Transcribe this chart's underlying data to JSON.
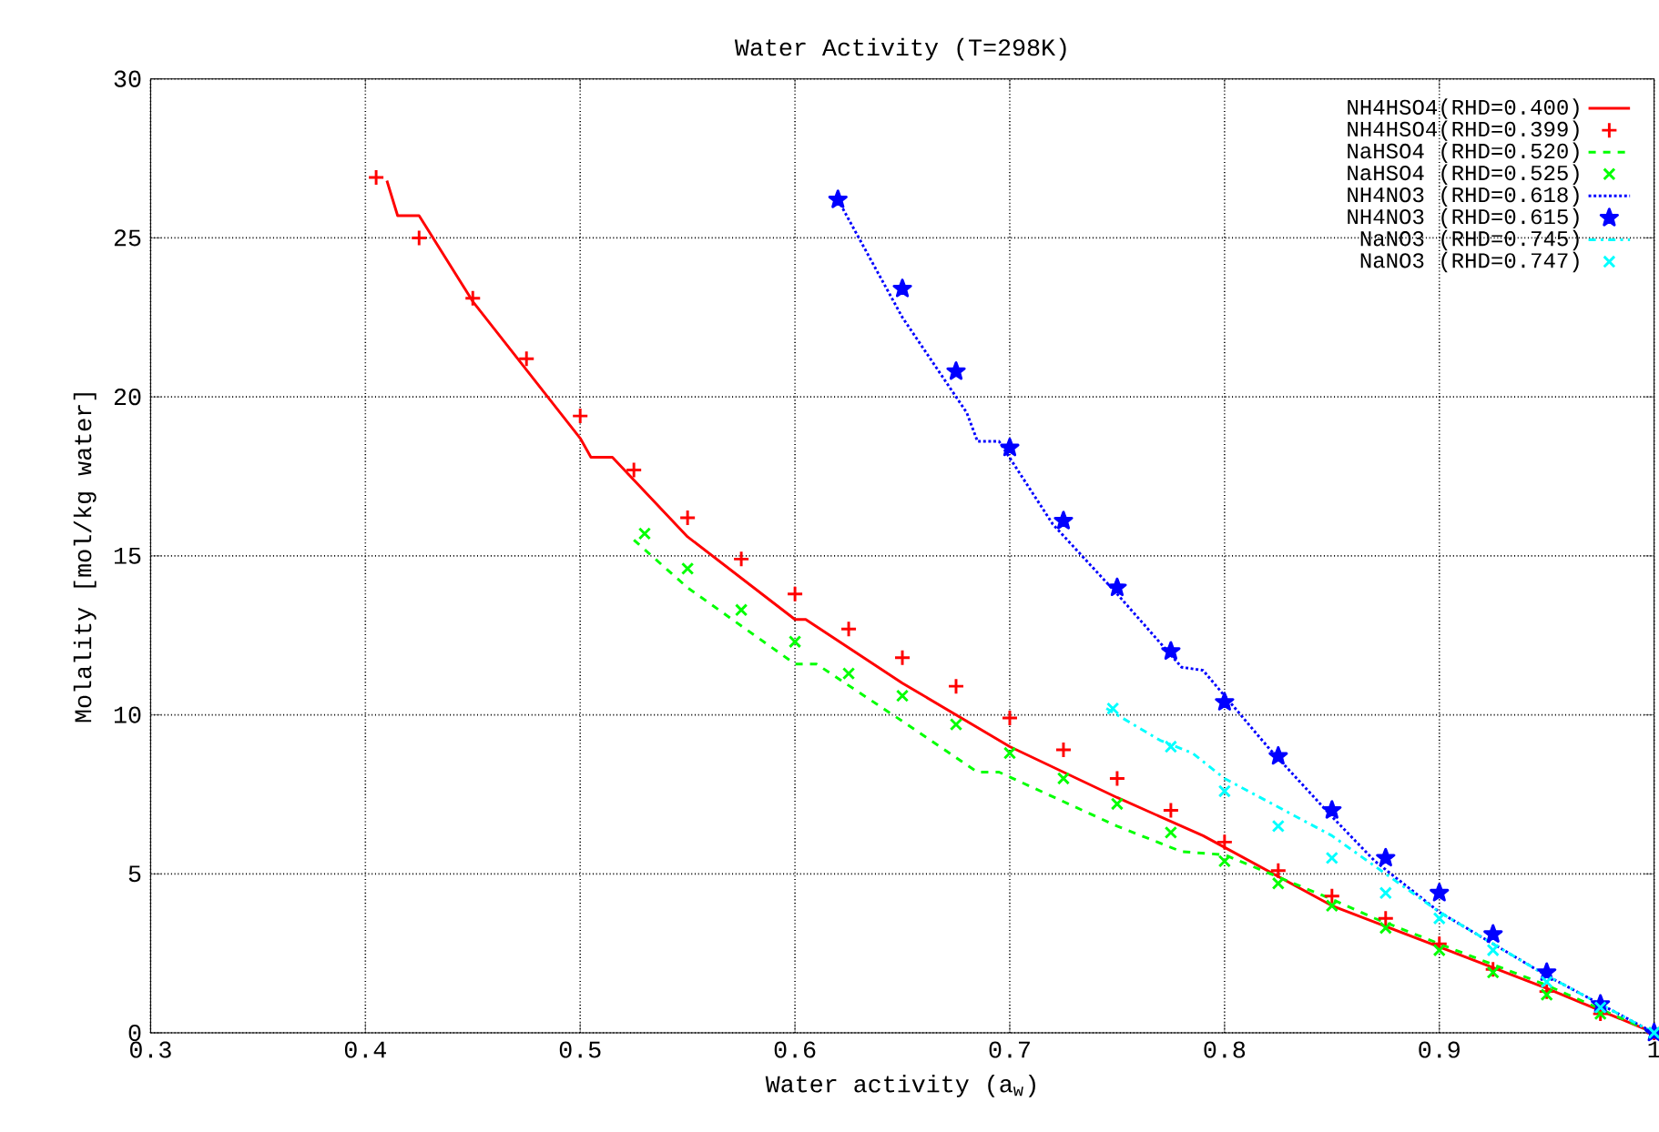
{
  "chart_data": {
    "type": "line",
    "title": "Water Activity (T=298K)",
    "xlabel": "Water activity (a$_{w}$)",
    "ylabel": "Molality [mol/kg water]",
    "xlim": [
      0.3,
      1.0
    ],
    "ylim": [
      0,
      30
    ],
    "xticks": [
      0.3,
      0.4,
      0.5,
      0.6,
      0.7,
      0.8,
      0.9,
      {
        "value": 1.0,
        "label": "1"
      }
    ],
    "yticks": [
      0,
      5,
      10,
      15,
      20,
      25,
      30
    ],
    "grid": true,
    "legend": "top right",
    "series": [
      {
        "name": "NH4HSO4(RHD=0.400)",
        "line_style": "solid",
        "marker": "none",
        "color": "#ff0000",
        "x": [
          0.41,
          0.415,
          0.425,
          0.45,
          0.5,
          0.505,
          0.515,
          0.55,
          0.6,
          0.605,
          0.65,
          0.7,
          0.75,
          0.79,
          0.85,
          0.9,
          0.95,
          1.0
        ],
        "values": [
          26.8,
          25.7,
          25.7,
          23.0,
          18.7,
          18.1,
          18.1,
          15.6,
          13.0,
          13.0,
          11.0,
          9.0,
          7.4,
          6.2,
          4.0,
          2.7,
          1.4,
          0
        ]
      },
      {
        "name": "NH4HSO4(RHD=0.399)",
        "type": "scatter",
        "marker": "cross",
        "color": "#ff0000",
        "x": [
          0.405,
          0.425,
          0.45,
          0.475,
          0.5,
          0.525,
          0.55,
          0.575,
          0.6,
          0.625,
          0.65,
          0.675,
          0.7,
          0.725,
          0.75,
          0.775,
          0.8,
          0.825,
          0.85,
          0.875,
          0.9,
          0.925,
          0.95,
          0.975,
          1.0
        ],
        "values": [
          26.9,
          25.0,
          23.1,
          21.2,
          19.4,
          17.7,
          16.2,
          14.9,
          13.8,
          12.7,
          11.8,
          10.9,
          9.9,
          8.9,
          8.0,
          7.0,
          6.0,
          5.1,
          4.3,
          3.6,
          2.8,
          2.0,
          1.3,
          0.6,
          0
        ]
      },
      {
        "name": "NaHSO4  (RHD=0.520)",
        "line_style": "dashed",
        "marker": "none",
        "color": "#00ff00",
        "x": [
          0.525,
          0.55,
          0.6,
          0.61,
          0.65,
          0.685,
          0.695,
          0.75,
          0.78,
          0.8,
          0.85,
          0.87,
          0.9,
          0.95,
          1.0
        ],
        "values": [
          15.5,
          14.0,
          11.6,
          11.6,
          9.8,
          8.2,
          8.2,
          6.5,
          5.7,
          5.6,
          4.2,
          3.6,
          2.8,
          1.5,
          0
        ]
      },
      {
        "name": "NaHSO4  (RHD=0.525)",
        "type": "scatter",
        "marker": "x",
        "color": "#00ff00",
        "x": [
          0.53,
          0.55,
          0.575,
          0.6,
          0.625,
          0.65,
          0.675,
          0.7,
          0.725,
          0.75,
          0.775,
          0.8,
          0.825,
          0.85,
          0.875,
          0.9,
          0.925,
          0.95,
          0.975,
          1.0
        ],
        "values": [
          15.7,
          14.6,
          13.3,
          12.3,
          11.3,
          10.6,
          9.7,
          8.8,
          8.0,
          7.2,
          6.3,
          5.4,
          4.7,
          4.0,
          3.3,
          2.6,
          1.9,
          1.2,
          0.6,
          0
        ]
      },
      {
        "name": "NH4NO3  (RHD=0.618)",
        "line_style": "dotted",
        "marker": "none",
        "color": "#0000ff",
        "x": [
          0.62,
          0.65,
          0.68,
          0.685,
          0.695,
          0.72,
          0.75,
          0.78,
          0.79,
          0.82,
          0.85,
          0.87,
          0.9,
          0.95,
          1.0
        ],
        "values": [
          26.2,
          22.5,
          19.5,
          18.6,
          18.6,
          16.0,
          13.8,
          11.5,
          11.4,
          9.0,
          6.8,
          5.4,
          3.8,
          1.8,
          0
        ]
      },
      {
        "name": "NH4NO3  (RHD=0.615)",
        "type": "scatter",
        "marker": "star",
        "color": "#0000ff",
        "x": [
          0.62,
          0.65,
          0.675,
          0.7,
          0.725,
          0.75,
          0.775,
          0.8,
          0.825,
          0.85,
          0.875,
          0.9,
          0.925,
          0.95,
          0.975,
          1.0
        ],
        "values": [
          26.2,
          23.4,
          20.8,
          18.4,
          16.1,
          14.0,
          12.0,
          10.4,
          8.7,
          7.0,
          5.5,
          4.4,
          3.1,
          1.9,
          0.9,
          0
        ]
      },
      {
        "name": "NaNO3    (RHD=0.745)",
        "line_style": "dashdot",
        "marker": "none",
        "color": "#00ffff",
        "x": [
          0.745,
          0.77,
          0.785,
          0.8,
          0.85,
          0.9,
          0.95,
          1.0
        ],
        "values": [
          10.2,
          9.2,
          8.8,
          8.0,
          6.2,
          3.8,
          1.8,
          0
        ]
      },
      {
        "name": "NaNO3    (RHD=0.747)",
        "type": "scatter",
        "marker": "x",
        "color": "#00ffff",
        "x": [
          0.748,
          0.775,
          0.8,
          0.825,
          0.85,
          0.875,
          0.9,
          0.925,
          0.95,
          0.975,
          1.0
        ],
        "values": [
          10.2,
          9.0,
          7.6,
          6.5,
          5.5,
          4.4,
          3.6,
          2.6,
          1.6,
          0.8,
          0
        ]
      }
    ]
  }
}
